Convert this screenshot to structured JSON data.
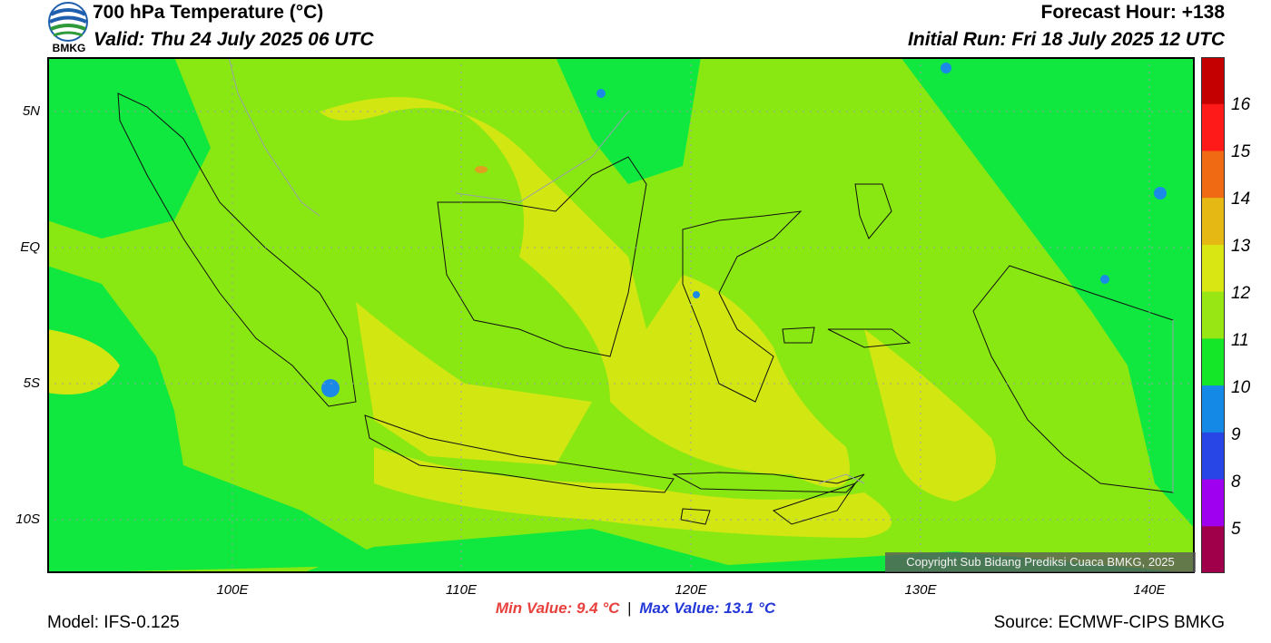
{
  "header": {
    "title": "700 hPa Temperature (°C)",
    "valid": "Valid: Thu 24 July 2025 06 UTC",
    "forecast_hour": "Forecast Hour: +138",
    "initial_run": "Initial Run: Fri 18 July 2025 12 UTC",
    "logo_text": "BMKG"
  },
  "axes": {
    "lat_labels": [
      "5N",
      "EQ",
      "5S",
      "10S"
    ],
    "lon_labels": [
      "100E",
      "110E",
      "120E",
      "130E",
      "140E"
    ]
  },
  "colorbar": {
    "labels": [
      "16",
      "15",
      "14",
      "13",
      "12",
      "11",
      "10",
      "9",
      "8",
      "5"
    ],
    "colors": [
      "#c40000",
      "#ff1a1a",
      "#f06a14",
      "#e6b814",
      "#d9e614",
      "#98e614",
      "#14e628",
      "#148ae6",
      "#2846e6",
      "#a000f0",
      "#a0004a"
    ]
  },
  "field_colors": {
    "c10": "#10e840",
    "c11": "#8ae812",
    "c12": "#d2e612",
    "c13": "#e0a020",
    "c9": "#1a8ae6"
  },
  "stats": {
    "min_label": "Min Value: 9.4 °C",
    "separator": "|",
    "max_label": "Max Value: 13.1 °C"
  },
  "footer": {
    "model": "Model: IFS-0.125",
    "source": "Source: ECMWF-CIPS BMKG",
    "copyright": "Copyright Sub Bidang Prediksi Cuaca BMKG, 2025"
  }
}
